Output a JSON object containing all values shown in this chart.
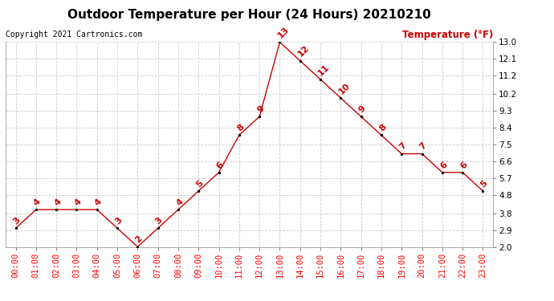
{
  "title": "Outdoor Temperature per Hour (24 Hours) 20210210",
  "copyright_text": "Copyright 2021 Cartronics.com",
  "legend_label": "Temperature (°F)",
  "hours": [
    "00:00",
    "01:00",
    "02:00",
    "03:00",
    "04:00",
    "05:00",
    "06:00",
    "07:00",
    "08:00",
    "09:00",
    "10:00",
    "11:00",
    "12:00",
    "13:00",
    "14:00",
    "15:00",
    "16:00",
    "17:00",
    "18:00",
    "19:00",
    "20:00",
    "21:00",
    "22:00",
    "23:00"
  ],
  "temps": [
    3,
    4,
    4,
    4,
    4,
    3,
    2,
    3,
    4,
    5,
    6,
    8,
    9,
    13,
    12,
    11,
    10,
    9,
    8,
    7,
    7,
    6,
    6,
    5
  ],
  "point_labels": [
    "3",
    "4",
    "4",
    "4",
    "4",
    "3",
    "2",
    "3",
    "4",
    "5",
    "6",
    "8",
    "9",
    "13",
    "12",
    "11",
    "10",
    "9",
    "8",
    "7",
    "7",
    "6",
    "6",
    "5"
  ],
  "ylim": [
    2.0,
    13.0
  ],
  "yticks": [
    2.0,
    2.9,
    3.8,
    4.8,
    5.7,
    6.6,
    7.5,
    8.4,
    9.3,
    10.2,
    11.2,
    12.1,
    13.0
  ],
  "line_color": "#cc0000",
  "marker_color": "#000000",
  "label_color": "#cc0000",
  "title_color": "#000000",
  "copyright_color": "#000000",
  "legend_color": "#cc0000",
  "bg_color": "#ffffff",
  "grid_color": "#cccccc",
  "title_fontsize": 11,
  "copyright_fontsize": 7,
  "label_fontsize": 8,
  "tick_fontsize": 7.5,
  "legend_fontsize": 8.5,
  "point_label_fontsize": 8
}
